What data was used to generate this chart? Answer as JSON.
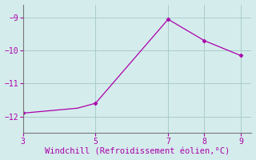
{
  "x": [
    3,
    3.5,
    4,
    4.5,
    5,
    7,
    8,
    9
  ],
  "y": [
    -11.9,
    -11.85,
    -11.8,
    -11.75,
    -11.6,
    -9.05,
    -9.7,
    -10.15
  ],
  "marker_x": [
    3,
    5,
    7,
    8,
    9
  ],
  "marker_y": [
    -11.9,
    -11.6,
    -9.05,
    -9.7,
    -10.15
  ],
  "line_color": "#aa00aa",
  "marker_color": "#aa00aa",
  "marker": "D",
  "marker_size": 2.5,
  "background_color": "#d5ecec",
  "grid_color": "#aacccc",
  "xlabel": "Windchill (Refroidissement éolien,°C)",
  "xlabel_color": "#aa00aa",
  "tick_color": "#aa00aa",
  "xlim": [
    3,
    9.3
  ],
  "ylim": [
    -12.5,
    -8.6
  ],
  "xticks": [
    3,
    5,
    7,
    8,
    9
  ],
  "yticks": [
    -12,
    -11,
    -10,
    -9
  ],
  "xlabel_fontsize": 7.5
}
